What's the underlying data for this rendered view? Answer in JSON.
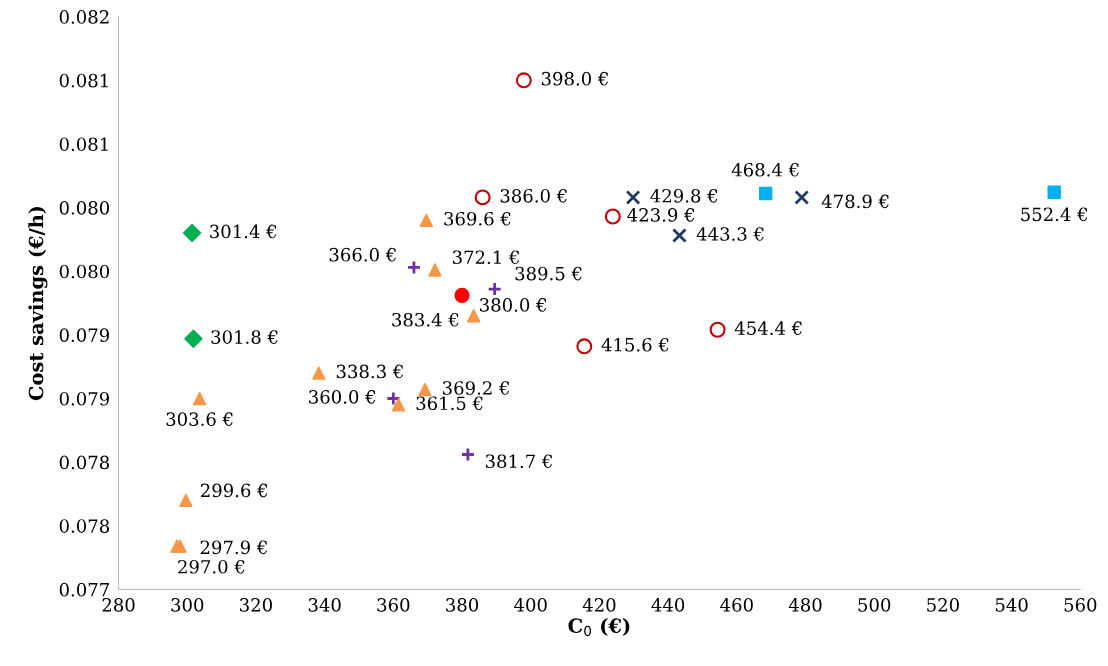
{
  "chart_data": {
    "type": "scatter",
    "xlabel": "C$_{0}$ (€)",
    "ylabel": "Cost savings (€/h)",
    "xlim": [
      280,
      560
    ],
    "xticks": [
      280,
      300,
      320,
      340,
      360,
      380,
      400,
      420,
      440,
      460,
      480,
      500,
      520,
      540,
      560
    ],
    "ylim": [
      0.077,
      0.0815
    ],
    "yticks": [
      {
        "value": 0.077,
        "label": "0.077"
      },
      {
        "value": 0.0775,
        "label": "0.078"
      },
      {
        "value": 0.078,
        "label": "0.078"
      },
      {
        "value": 0.0785,
        "label": "0.079"
      },
      {
        "value": 0.079,
        "label": "0.079"
      },
      {
        "value": 0.0795,
        "label": "0.080"
      },
      {
        "value": 0.08,
        "label": "0.080"
      },
      {
        "value": 0.0805,
        "label": "0.081"
      },
      {
        "value": 0.081,
        "label": "0.081"
      },
      {
        "value": 0.0815,
        "label": "0.082"
      }
    ],
    "grid": false,
    "legend": false,
    "series": [
      {
        "color": "#c00000",
        "marker": "open circle",
        "x": [
          398.0,
          386.0,
          423.9,
          415.6,
          454.4
        ],
        "values": [
          0.081,
          0.08008,
          0.07993,
          0.07891,
          0.07904
        ]
      },
      {
        "color": "#1f3864",
        "marker": "cross",
        "x": [
          429.8,
          443.3,
          478.9
        ],
        "values": [
          0.08008,
          0.07978,
          0.08008
        ]
      },
      {
        "color": "#00b0f0",
        "marker": "square",
        "x": [
          468.4,
          552.4
        ],
        "values": [
          0.08011,
          0.08012
        ]
      },
      {
        "color": "#00b050",
        "marker": "diamond",
        "x": [
          301.4,
          301.8
        ],
        "values": [
          0.0798,
          0.07897
        ]
      },
      {
        "color": "#7030a0",
        "marker": "plus",
        "x": [
          366.0,
          389.5,
          360.0,
          381.7
        ],
        "values": [
          0.07953,
          0.07936,
          0.0785,
          0.07806
        ]
      },
      {
        "color": "#f79646",
        "marker": "triangle",
        "x": [
          369.6,
          372.1,
          383.4,
          338.3,
          369.2,
          361.5,
          303.6,
          299.6,
          297.9,
          297.0
        ],
        "values": [
          0.0799,
          0.07951,
          0.07915,
          0.0787,
          0.07857,
          0.07845,
          0.0785,
          0.0777,
          0.07734,
          0.07734
        ]
      },
      {
        "color": "#ff0000",
        "marker": "circle",
        "x": [
          380.0
        ],
        "values": [
          0.07931
        ]
      }
    ],
    "annotations": [
      {
        "text": "398.0 €",
        "x": 398.0,
        "y": 0.081
      },
      {
        "text": "386.0 €",
        "x": 386.0,
        "y": 0.08008
      },
      {
        "text": "423.9 €",
        "x": 423.9,
        "y": 0.07993
      },
      {
        "text": "415.6 €",
        "x": 415.6,
        "y": 0.07891
      },
      {
        "text": "454.4 €",
        "x": 454.4,
        "y": 0.07904
      },
      {
        "text": "429.8 €",
        "x": 429.8,
        "y": 0.08008
      },
      {
        "text": "443.3 €",
        "x": 443.3,
        "y": 0.07978
      },
      {
        "text": "478.9 €",
        "x": 478.9,
        "y": 0.08008
      },
      {
        "text": "468.4 €",
        "x": 468.4,
        "y": 0.08011
      },
      {
        "text": "552.4 €",
        "x": 552.4,
        "y": 0.08012
      },
      {
        "text": "301.4 €",
        "x": 301.4,
        "y": 0.0798
      },
      {
        "text": "301.8 €",
        "x": 301.8,
        "y": 0.07897
      },
      {
        "text": "366.0 €",
        "x": 366.0,
        "y": 0.07953
      },
      {
        "text": "389.5 €",
        "x": 389.5,
        "y": 0.07936
      },
      {
        "text": "360.0 €",
        "x": 360.0,
        "y": 0.0785
      },
      {
        "text": "381.7 €",
        "x": 381.7,
        "y": 0.07806
      },
      {
        "text": "369.6 €",
        "x": 369.6,
        "y": 0.0799
      },
      {
        "text": "372.1 €",
        "x": 372.1,
        "y": 0.07951
      },
      {
        "text": "383.4 €",
        "x": 383.4,
        "y": 0.07915
      },
      {
        "text": "338.3 €",
        "x": 338.3,
        "y": 0.0787
      },
      {
        "text": "369.2 €",
        "x": 369.2,
        "y": 0.07857
      },
      {
        "text": "361.5 €",
        "x": 361.5,
        "y": 0.07845
      },
      {
        "text": "303.6 €",
        "x": 303.6,
        "y": 0.0785
      },
      {
        "text": "299.6 €",
        "x": 299.6,
        "y": 0.0777
      },
      {
        "text": "297.9 €",
        "x": 297.9,
        "y": 0.07734
      },
      {
        "text": "297.0 €",
        "x": 297.0,
        "y": 0.07734
      },
      {
        "text": "380.0 €",
        "x": 380.0,
        "y": 0.07931
      }
    ]
  }
}
